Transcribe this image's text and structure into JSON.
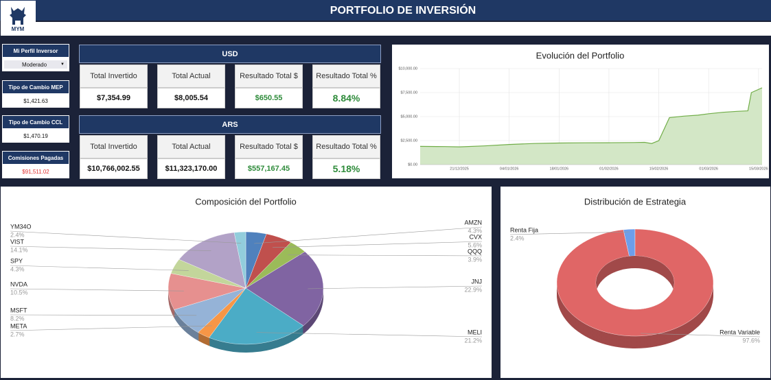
{
  "header": {
    "logo": "MYM",
    "title": "PORTFOLIO DE INVERSIÓN"
  },
  "sidebar": {
    "profile": {
      "label": "Mi Perfil Inversor",
      "value": "Moderado"
    },
    "mep": {
      "label": "Tipo de Cambio MEP",
      "value": "$1,421.63"
    },
    "ccl": {
      "label": "Tipo de Cambio CCL",
      "value": "$1,470.19"
    },
    "fees": {
      "label": "Comisiones Pagadas",
      "value": "$91,511.02"
    }
  },
  "summary": [
    {
      "currency": "USD",
      "cards": [
        {
          "label": "Total Invertido",
          "value": "$7,354.99"
        },
        {
          "label": "Total Actual",
          "value": "$8,005.54"
        },
        {
          "label": "Resultado Total $",
          "value": "$650.55"
        },
        {
          "label": "Resultado Total %",
          "value": "8.84%"
        }
      ]
    },
    {
      "currency": "ARS",
      "cards": [
        {
          "label": "Total Invertido",
          "value": "$10,766,002.55"
        },
        {
          "label": "Total Actual",
          "value": "$11,323,170.00"
        },
        {
          "label": "Resultado Total $",
          "value": "$557,167.45"
        },
        {
          "label": "Resultado Total %",
          "value": "5.18%"
        }
      ]
    }
  ],
  "chart_data": [
    {
      "type": "area",
      "title": "Evolución del Portfolio",
      "x": [
        "10/12/2025",
        "17/12/2025",
        "21/12/2025",
        "28/12/2025",
        "04/01/2026",
        "11/01/2026",
        "18/01/2026",
        "25/01/2026",
        "01/02/2026",
        "08/02/2026",
        "11/02/2026",
        "13/02/2026",
        "15/02/2026",
        "18/02/2026",
        "22/02/2026",
        "26/02/2026",
        "01/03/2026",
        "05/03/2026",
        "09/03/2026",
        "12/03/2026",
        "13/03/2026",
        "16/03/2026"
      ],
      "values": [
        1900,
        1880,
        1850,
        1950,
        2100,
        2200,
        2250,
        2270,
        2280,
        2300,
        2320,
        2200,
        2500,
        4900,
        5050,
        5150,
        5300,
        5450,
        5550,
        5600,
        7500,
        8000
      ],
      "color": "#70ad47",
      "fill": "#d3e7c6",
      "xlim": [
        "10/12/2025",
        "16/03/2026"
      ],
      "xticks": [
        "21/12/2025",
        "04/01/2026",
        "18/01/2026",
        "01/02/2026",
        "15/02/2026",
        "01/03/2026",
        "15/03/2026"
      ],
      "ylim": [
        0,
        10000
      ],
      "yticks": [
        {
          "value": 0,
          "label": "$0.00"
        },
        {
          "value": 2500,
          "label": "$2,500.00"
        },
        {
          "value": 5000,
          "label": "$5,000.00"
        },
        {
          "value": 7500,
          "label": "$7,500.00"
        },
        {
          "value": 10000,
          "label": "$10,000.00"
        }
      ],
      "grid": true
    },
    {
      "type": "pie",
      "title": "Composición del Portfolio",
      "categories": [
        "AMZN",
        "CVX",
        "QQQ",
        "JNJ",
        "MELI",
        "META",
        "MSFT",
        "NVDA",
        "SPY",
        "VIST",
        "YM34O"
      ],
      "values": [
        4.3,
        5.6,
        3.9,
        22.9,
        21.2,
        2.7,
        8.2,
        10.5,
        4.3,
        14.1,
        2.4
      ],
      "value_labels": [
        "4.3%",
        "5.6%",
        "3.9%",
        "22.9%",
        "21.2%",
        "2.7%",
        "8.2%",
        "10.5%",
        "4.3%",
        "14.1%",
        "2.4%"
      ],
      "colors": [
        "#4f81bd",
        "#c0504d",
        "#9bbb59",
        "#8064a2",
        "#4bacc6",
        "#f79646",
        "#95b3d7",
        "#e6908f",
        "#c3d69b",
        "#b2a2c7",
        "#92cddc"
      ]
    },
    {
      "type": "donut",
      "title": "Distribución de Estrategia",
      "categories": [
        "Renta Fija",
        "Renta Variable"
      ],
      "values": [
        2.4,
        97.6
      ],
      "value_labels": [
        "2.4%",
        "97.6%"
      ],
      "colors": [
        "#6d9eeb",
        "#e06666"
      ]
    }
  ]
}
